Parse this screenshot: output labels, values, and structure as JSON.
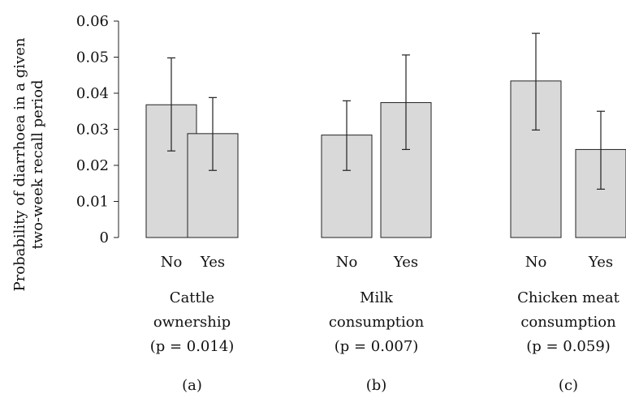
{
  "chart_data": {
    "type": "bar",
    "ylabel_lines": [
      "Probability of diarrhoea in a given",
      "two-week recall period"
    ],
    "ylim": [
      0,
      0.06
    ],
    "yticks": [
      "0",
      "0.01",
      "0.02",
      "0.03",
      "0.04",
      "0.05",
      "0.06"
    ],
    "grid": false,
    "bar_color": "#d9d9d9",
    "groups": [
      {
        "label_lines": [
          "Cattle",
          "ownership",
          "(p = 0.014)"
        ],
        "panel": "(a)",
        "bars": [
          {
            "category": "No",
            "value": 0.0368,
            "err_low": 0.024,
            "err_high": 0.0498
          },
          {
            "category": "Yes",
            "value": 0.0288,
            "err_low": 0.0186,
            "err_high": 0.0388
          }
        ]
      },
      {
        "label_lines": [
          "Milk",
          "consumption",
          "(p = 0.007)"
        ],
        "panel": "(b)",
        "bars": [
          {
            "category": "No",
            "value": 0.0284,
            "err_low": 0.0186,
            "err_high": 0.0379
          },
          {
            "category": "Yes",
            "value": 0.0374,
            "err_low": 0.0244,
            "err_high": 0.0506
          }
        ]
      },
      {
        "label_lines": [
          "Chicken meat",
          "consumption",
          "(p = 0.059)"
        ],
        "panel": "(c)",
        "bars": [
          {
            "category": "No",
            "value": 0.0434,
            "err_low": 0.0298,
            "err_high": 0.0566
          },
          {
            "category": "Yes",
            "value": 0.0244,
            "err_low": 0.0134,
            "err_high": 0.035
          }
        ]
      }
    ]
  }
}
